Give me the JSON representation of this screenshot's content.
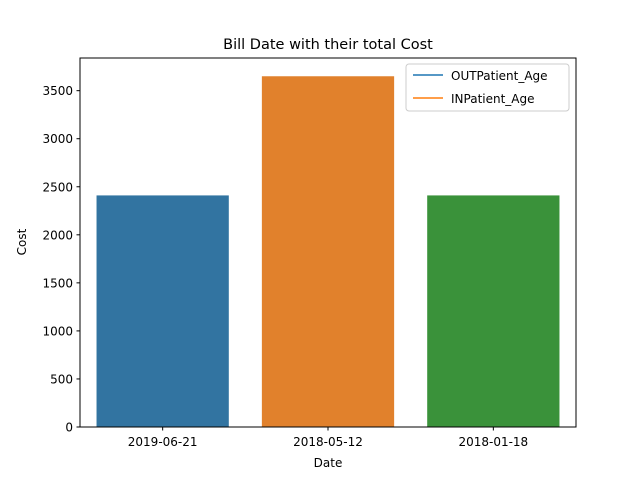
{
  "chart_data": {
    "type": "bar",
    "title": "Bill Date with their total Cost",
    "xlabel": "Date",
    "ylabel": "Cost",
    "categories": [
      "2019-06-21",
      "2018-05-12",
      "2018-01-18"
    ],
    "values": [
      2410,
      3650,
      2410
    ],
    "bar_colors": [
      "#3274a1",
      "#e1812c",
      "#3a923a"
    ],
    "ylim": [
      0,
      3840
    ],
    "yticks": [
      0,
      500,
      1000,
      1500,
      2000,
      2500,
      3000,
      3500
    ],
    "grid": false,
    "legend": {
      "placement": "top-right",
      "entries": [
        {
          "label": "OUTPatient_Age",
          "color": "#1f77b4"
        },
        {
          "label": "INPatient_Age",
          "color": "#ff7f0e"
        }
      ]
    }
  }
}
